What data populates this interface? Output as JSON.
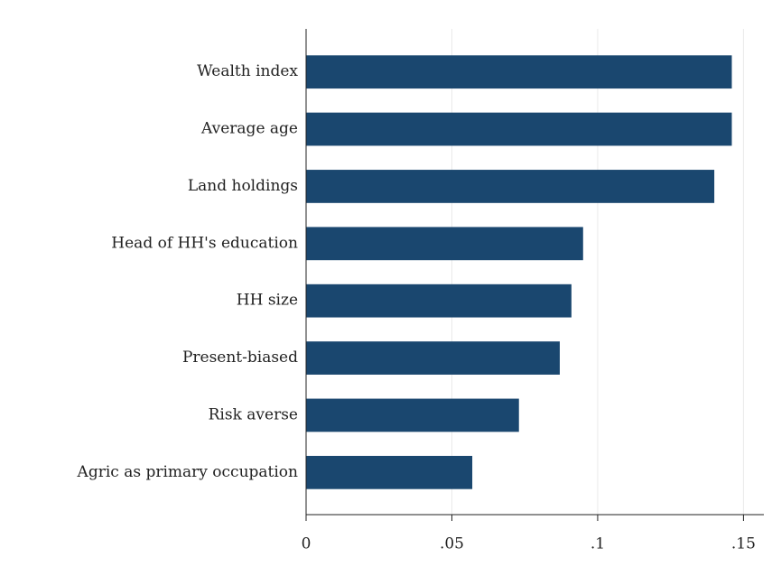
{
  "chart_data": {
    "type": "barh",
    "categories": [
      "Wealth index",
      "Average age",
      "Land holdings",
      "Head of HH's education",
      "HH size",
      "Present-biased",
      "Risk averse",
      "Agric as primary occupation"
    ],
    "values": [
      0.146,
      0.146,
      0.14,
      0.095,
      0.091,
      0.087,
      0.073,
      0.057
    ],
    "color": "#1a476f",
    "xlim": [
      0,
      0.157
    ],
    "xticks": [
      0,
      {
        "value": 0.05,
        "label": ".05"
      },
      {
        "value": 0.1,
        "label": ".1"
      },
      {
        "value": 0.15,
        "label": ".15"
      }
    ],
    "grid": true
  }
}
